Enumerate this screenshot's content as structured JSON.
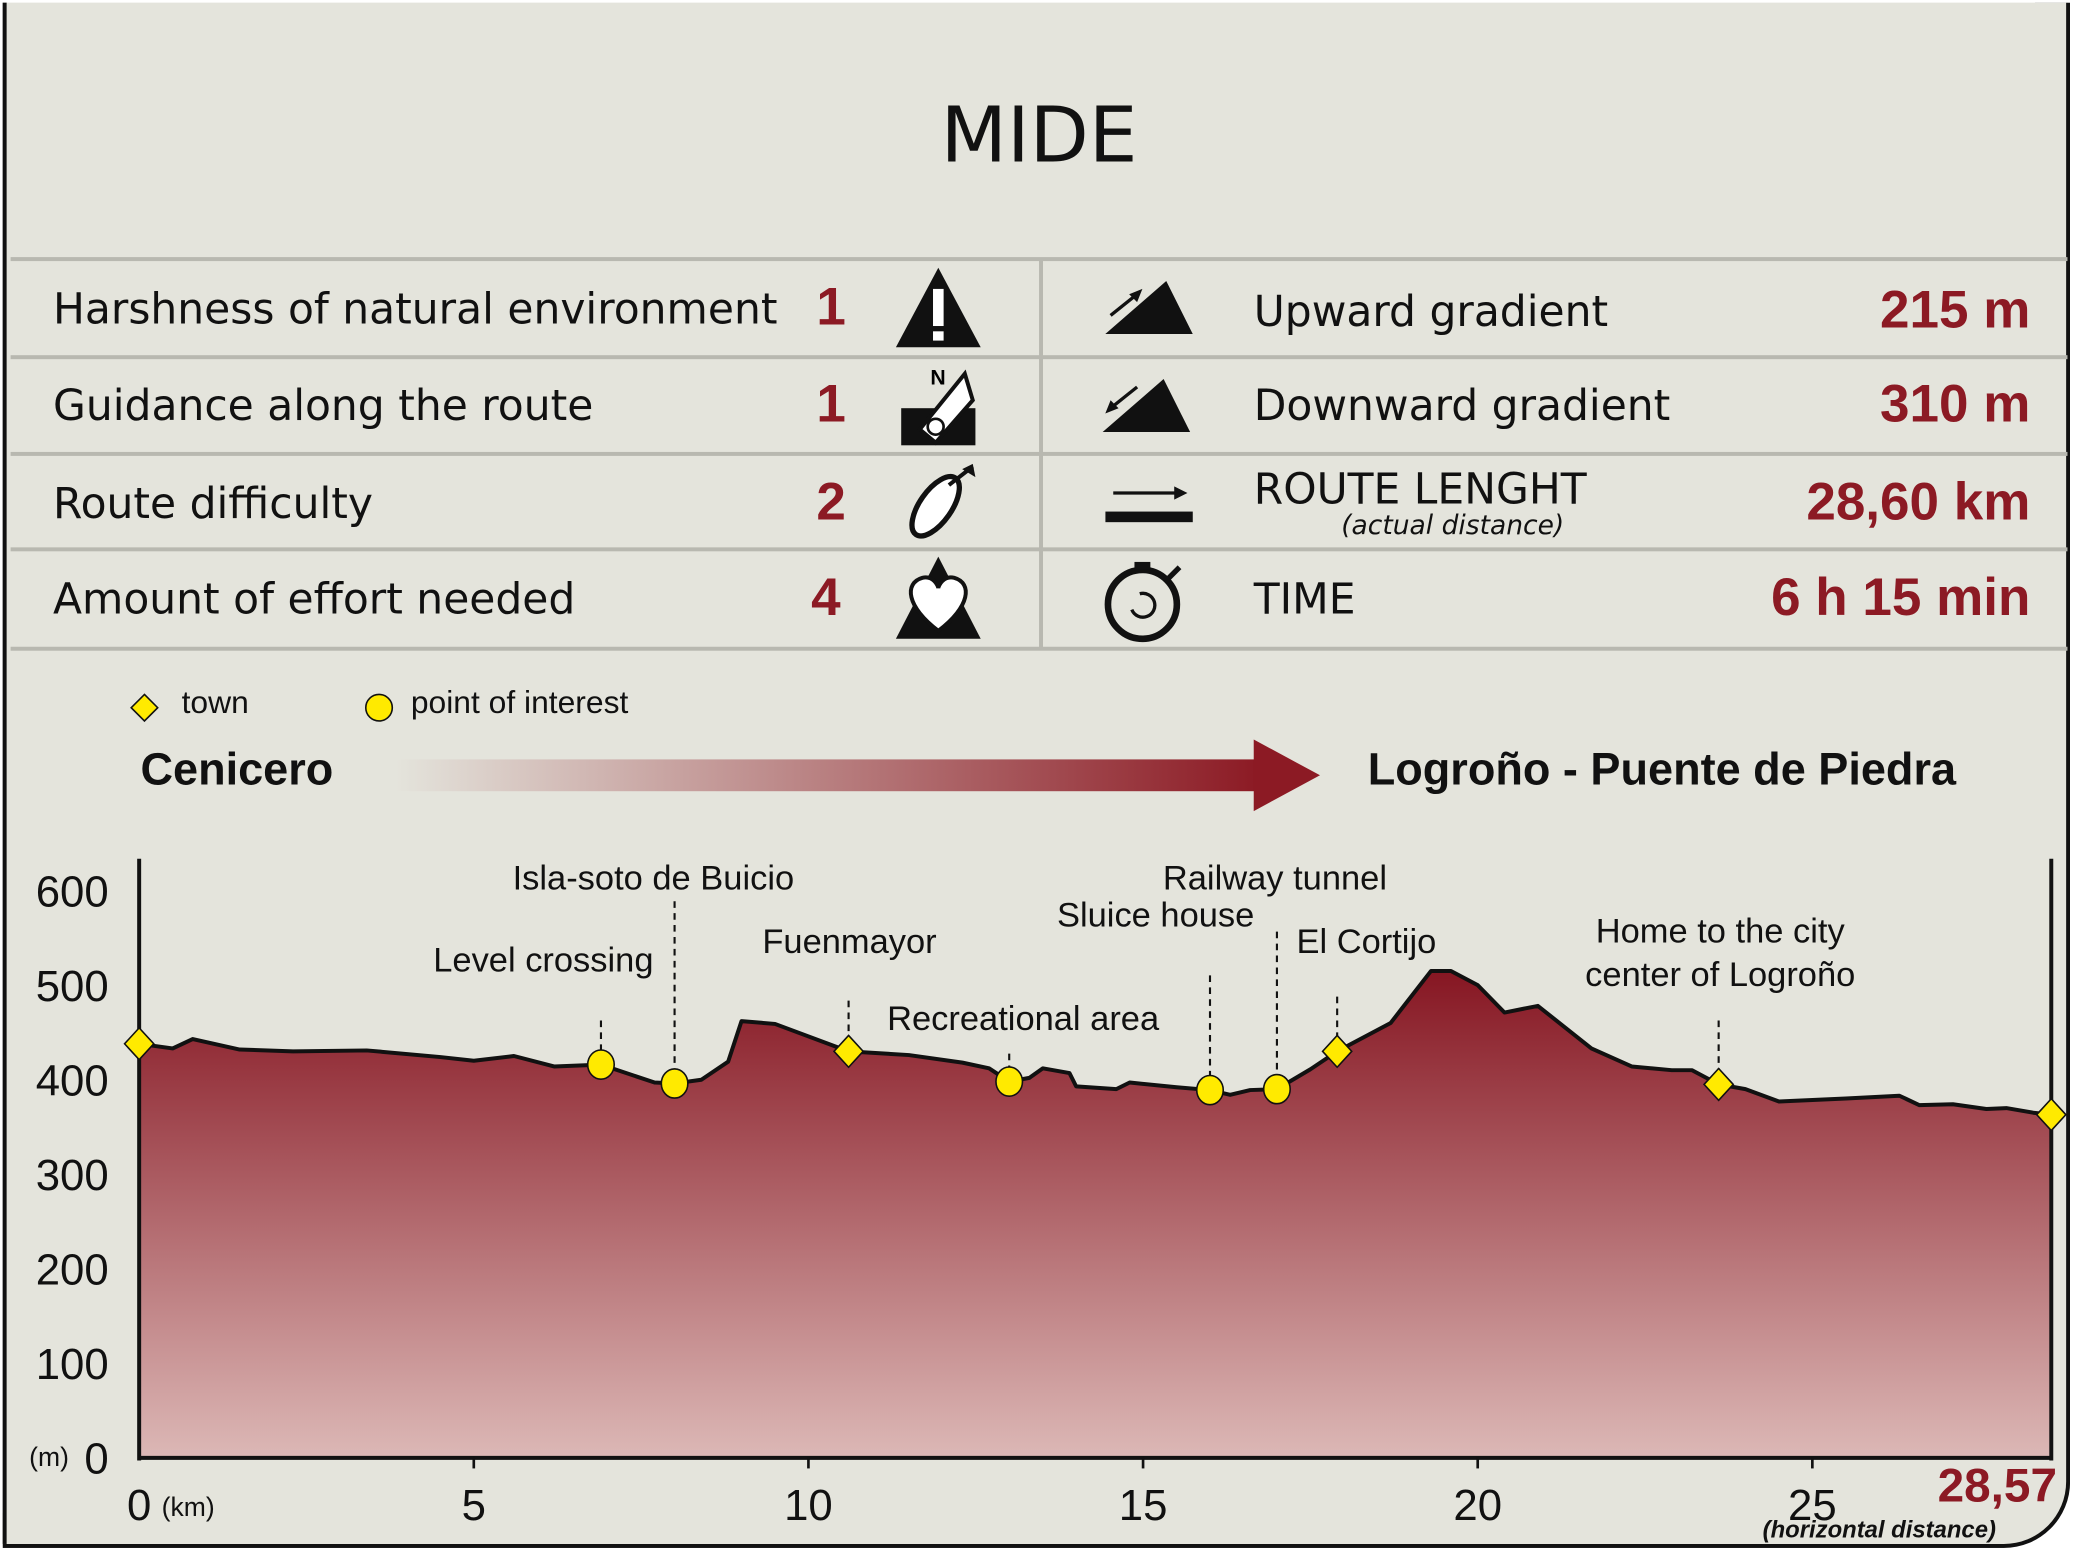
{
  "title": "MIDE",
  "mide": [
    {
      "label": "Harshness of natural environment",
      "value": "1",
      "icon": "warning-triangle-icon"
    },
    {
      "label": "Guidance along the route",
      "value": "1",
      "icon": "compass-map-icon"
    },
    {
      "label": "Route difficulty",
      "value": "2",
      "icon": "footprint-icon"
    },
    {
      "label": "Amount of effort needed",
      "value": "4",
      "icon": "heart-mountain-icon"
    }
  ],
  "stats": [
    {
      "label": "Upward gradient",
      "value": "215 m",
      "icon": "upward-slope-icon"
    },
    {
      "label": "Downward gradient",
      "value": "310 m",
      "icon": "downward-slope-icon"
    },
    {
      "label": "ROUTE LENGHT",
      "sublabel": "(actual distance)",
      "value": "28,60 km",
      "icon": "distance-arrow-icon"
    },
    {
      "label": "TIME",
      "value": "6 h 15 min",
      "icon": "stopwatch-icon"
    }
  ],
  "legend": {
    "town": "town",
    "poi": "point of interest"
  },
  "route": {
    "start": "Cenicero",
    "end": "Logroño - Puente de Piedra"
  },
  "colors": {
    "accent": "#8c1a24",
    "marker": "#ffea00",
    "background": "#e4e4dc"
  },
  "chart_data": {
    "type": "area",
    "xlabel": "(km)",
    "ylabel": "(m)",
    "xlim": [
      0,
      28.57
    ],
    "ylim": [
      0,
      600
    ],
    "xticks": [
      "0",
      "5",
      "10",
      "15",
      "20",
      "25"
    ],
    "yticks": [
      "0",
      "100",
      "200",
      "300",
      "400",
      "500",
      "600"
    ],
    "end_distance": "28,57",
    "end_note": "(horizontal distance)",
    "profile": [
      [
        0,
        438
      ],
      [
        0.5,
        433
      ],
      [
        0.8,
        443
      ],
      [
        1.5,
        432
      ],
      [
        2.3,
        430
      ],
      [
        3.4,
        431
      ],
      [
        4.5,
        424
      ],
      [
        5,
        420
      ],
      [
        5.6,
        425
      ],
      [
        6.2,
        414
      ],
      [
        6.9,
        416
      ],
      [
        7.7,
        397
      ],
      [
        8,
        396
      ],
      [
        8.4,
        400
      ],
      [
        8.8,
        419
      ],
      [
        9,
        462
      ],
      [
        9.5,
        459
      ],
      [
        10.6,
        430
      ],
      [
        11.5,
        426
      ],
      [
        12.3,
        418
      ],
      [
        12.7,
        412
      ],
      [
        13,
        398
      ],
      [
        13.3,
        402
      ],
      [
        13.5,
        412
      ],
      [
        13.9,
        407
      ],
      [
        14,
        393
      ],
      [
        14.6,
        390
      ],
      [
        14.8,
        397
      ],
      [
        15.5,
        392
      ],
      [
        16,
        389
      ],
      [
        16.3,
        384
      ],
      [
        16.6,
        389
      ],
      [
        17,
        390
      ],
      [
        17.5,
        411
      ],
      [
        17.9,
        430
      ],
      [
        18.7,
        460
      ],
      [
        19.3,
        515
      ],
      [
        19.6,
        515
      ],
      [
        20,
        500
      ],
      [
        20.4,
        471
      ],
      [
        20.9,
        478
      ],
      [
        21.7,
        433
      ],
      [
        22.3,
        414
      ],
      [
        22.9,
        410
      ],
      [
        23.2,
        410
      ],
      [
        23.6,
        395
      ],
      [
        24,
        390
      ],
      [
        24.5,
        377
      ],
      [
        25.5,
        380
      ],
      [
        26.3,
        383
      ],
      [
        26.6,
        373
      ],
      [
        27.1,
        374
      ],
      [
        27.6,
        369
      ],
      [
        27.9,
        370
      ],
      [
        28.3,
        365
      ],
      [
        28.57,
        363
      ]
    ],
    "points": [
      {
        "km": 0,
        "elev": 438,
        "kind": "town",
        "label": ""
      },
      {
        "km": 6.9,
        "elev": 416,
        "kind": "poi",
        "label": "Level crossing"
      },
      {
        "km": 8.0,
        "elev": 396,
        "kind": "poi",
        "label": "Isla-soto de Buicio"
      },
      {
        "km": 10.6,
        "elev": 430,
        "kind": "town",
        "label": "Fuenmayor"
      },
      {
        "km": 13.0,
        "elev": 398,
        "kind": "poi",
        "label": "Recreational area"
      },
      {
        "km": 16.0,
        "elev": 389,
        "kind": "poi",
        "label": "Sluice house"
      },
      {
        "km": 17.0,
        "elev": 390,
        "kind": "poi",
        "label": "Railway tunnel"
      },
      {
        "km": 17.9,
        "elev": 430,
        "kind": "town",
        "label": "El Cortijo"
      },
      {
        "km": 23.6,
        "elev": 395,
        "kind": "town",
        "label": "Home to the city center of Logroño"
      },
      {
        "km": 28.57,
        "elev": 363,
        "kind": "town",
        "label": ""
      }
    ]
  }
}
